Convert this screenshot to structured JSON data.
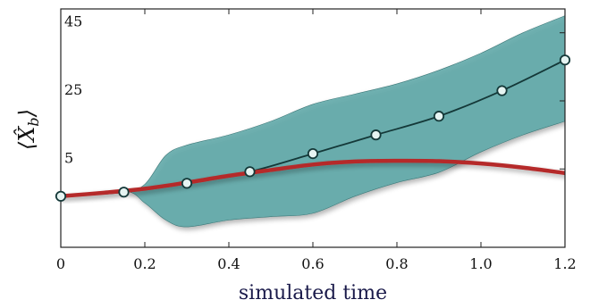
{
  "chart_data": {
    "type": "line",
    "xlabel": "simulated time",
    "ylabel": "⟨X̂_b⟩",
    "ylabel_parts": {
      "open": "⟨",
      "main": "X̂",
      "sub": "b",
      "close": "⟩"
    },
    "xlim": [
      0,
      1.2
    ],
    "ylim": [
      -18,
      52
    ],
    "x_ticks": [
      0,
      0.2,
      0.4,
      0.6,
      0.8,
      1.0,
      1.2
    ],
    "x_tick_labels": [
      "0",
      "0.2",
      "0.4",
      "0.6",
      "0.8",
      "1.0",
      "1.2"
    ],
    "y_ticks": [
      5,
      25,
      45
    ],
    "y_tick_labels": [
      "5",
      "25",
      "45"
    ],
    "grid": false,
    "series": [
      {
        "kind": "band",
        "color": "#5aa6a6",
        "x": [
          0,
          0.15,
          0.2,
          0.25,
          0.3,
          0.4,
          0.5,
          0.6,
          0.7,
          0.8,
          0.9,
          1.0,
          1.1,
          1.2
        ],
        "upper": [
          -3,
          -1.5,
          0.5,
          9,
          12,
          15,
          19,
          24,
          27,
          30,
          34,
          39,
          45,
          50
        ],
        "lower": [
          -3,
          -1.5,
          -5,
          -10,
          -12,
          -10,
          -9,
          -8,
          -3,
          1,
          4,
          10,
          15,
          19
        ]
      },
      {
        "kind": "line-markers",
        "color": "#143838",
        "marker_fill": "#e6f4f2",
        "x": [
          0,
          0.15,
          0.3,
          0.45,
          0.6,
          0.75,
          0.9,
          1.05,
          1.2
        ],
        "y": [
          -3,
          -1.8,
          0.8,
          4.2,
          9.5,
          15,
          20.5,
          28,
          37
        ]
      },
      {
        "kind": "line",
        "color": "#b52a2a",
        "x": [
          0,
          0.1,
          0.2,
          0.3,
          0.4,
          0.5,
          0.6,
          0.7,
          0.8,
          0.9,
          1.0,
          1.1,
          1.2
        ],
        "y": [
          -3,
          -2,
          -0.8,
          1,
          3,
          4.7,
          6.3,
          7.2,
          7.4,
          7.3,
          6.6,
          5.4,
          3.8
        ]
      }
    ]
  }
}
